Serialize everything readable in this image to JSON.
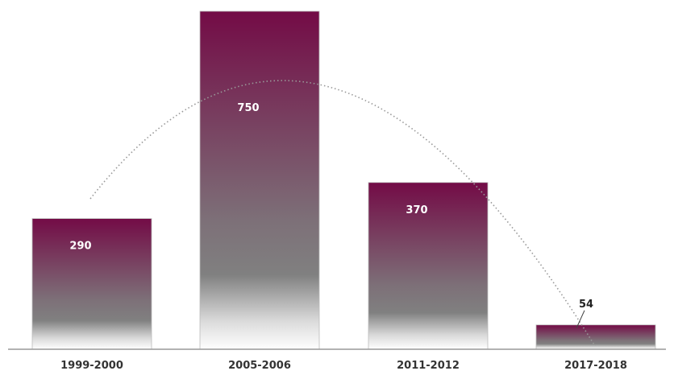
{
  "chart_data": {
    "type": "bar",
    "title": "",
    "xlabel": "",
    "ylabel": "",
    "categories": [
      "1999-2000",
      "2005-2006",
      "2011-2012",
      "2017-2018"
    ],
    "values": [
      290,
      750,
      370,
      54
    ],
    "value_labels": [
      "290",
      "750",
      "370",
      "54"
    ],
    "ylim": [
      0,
      750
    ],
    "grid": false,
    "trend_line": "dotted curve",
    "colors": {
      "bar_top": "#730b46",
      "bar_mid": "#808080",
      "bar_bottom": "#ffffff",
      "axis": "#999999",
      "trend": "#999999"
    }
  }
}
